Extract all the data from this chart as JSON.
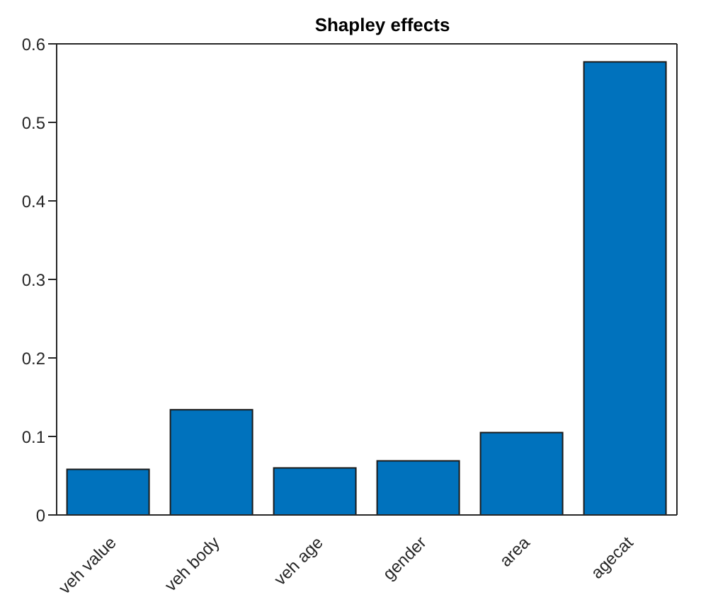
{
  "chart_data": {
    "type": "bar",
    "title": "Shapley effects",
    "categories": [
      "veh value",
      "veh body",
      "veh age",
      "gender",
      "area",
      "agecat"
    ],
    "values": [
      0.058,
      0.134,
      0.06,
      0.069,
      0.105,
      0.577
    ],
    "color": "#0072bd",
    "ylim": [
      0,
      0.6
    ],
    "yticks": [
      0,
      0.1,
      0.2,
      0.3,
      0.4,
      0.5,
      0.6
    ],
    "grid": false
  }
}
